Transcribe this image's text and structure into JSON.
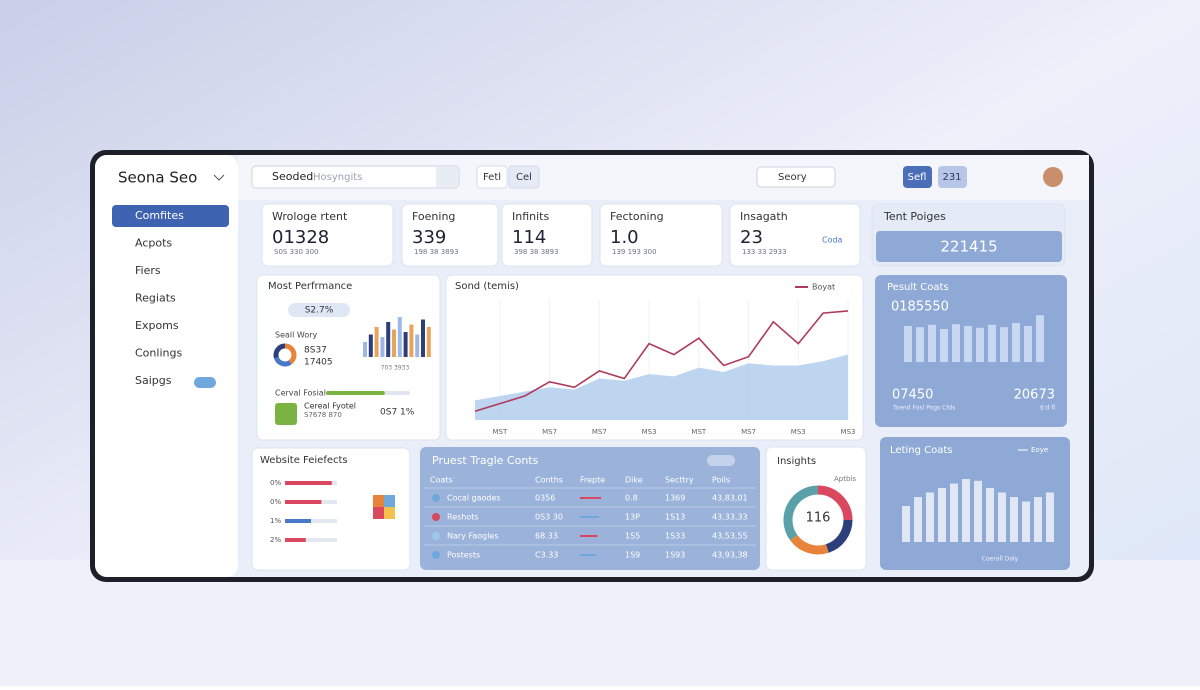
{
  "brand": "Seona Seo",
  "search": {
    "label": "Seoded",
    "placeholder": "Hosyngits"
  },
  "toolbar": [
    "Fetl",
    "Cel"
  ],
  "search2": "Seory",
  "buttons": [
    "Sefl",
    "231"
  ],
  "nav": [
    "Comfites",
    "Acpots",
    "Fiers",
    "Regiats",
    "Expoms",
    "Conlings",
    "Saipgs"
  ],
  "kpis": [
    {
      "title": "Wrologe rtent",
      "value": "01328",
      "sub": "S0S 330 300"
    },
    {
      "title": "Foening",
      "value": "339",
      "sub": "198 38 3893"
    },
    {
      "title": "Infinits",
      "value": "114",
      "sub": "398 38 3893"
    },
    {
      "title": "Fectoning",
      "value": "1.0",
      "sub": "139 193 300"
    },
    {
      "title": "Insagath",
      "value": "23",
      "sub": "133 33 2933",
      "note": "Coda"
    }
  ],
  "top_pages": {
    "title": "Tent Poiges",
    "value": "221415"
  },
  "performance": {
    "title": "Most Perfrmance",
    "pill": "S2.7%",
    "donut_title": "Seall Wory",
    "donut_values": [
      40,
      30,
      30
    ],
    "donut_colors": [
      "#e8833a",
      "#4a78c8",
      "#2d3f7a"
    ],
    "stats": [
      "8S37",
      "17405"
    ],
    "bars": [
      30,
      45,
      60,
      40,
      70,
      55,
      80,
      50,
      65,
      45,
      75,
      60
    ],
    "bar_colors": [
      "#9db8e8",
      "#2d3f7a",
      "#e8a45a"
    ],
    "caption": "703 3933",
    "progress_label": "Cerval Fosial",
    "progress": 70,
    "item_title": "Cereal Fyotel",
    "item_sub": "S7678 870",
    "item_value": "0S7 1%"
  },
  "trend": {
    "type": "line",
    "title": "Sond (temis)",
    "x": [
      0,
      1,
      2,
      3,
      4,
      5,
      6,
      7,
      8,
      9,
      10,
      11,
      12,
      13,
      14,
      15
    ],
    "xlim": [
      0,
      15
    ],
    "xticks": [
      {
        "value": 1,
        "label": "MST"
      },
      {
        "value": 3,
        "label": "MS7"
      },
      {
        "value": 5,
        "label": "MS7"
      },
      {
        "value": 7,
        "label": "MS3"
      },
      {
        "value": 9,
        "label": "MST"
      },
      {
        "value": 11,
        "label": "MS7"
      },
      {
        "value": 13,
        "label": "MS3"
      },
      {
        "value": 15,
        "label": "MS3"
      }
    ],
    "ylim": [
      0,
      110
    ],
    "series": [
      {
        "name": "Boyat",
        "color": "#b03a5b",
        "values": [
          8,
          15,
          22,
          35,
          30,
          45,
          38,
          70,
          60,
          75,
          50,
          58,
          90,
          70,
          98,
          100
        ]
      }
    ],
    "area": {
      "color": "#aecbec",
      "values": [
        18,
        22,
        26,
        30,
        28,
        38,
        36,
        42,
        40,
        48,
        44,
        52,
        50,
        50,
        54,
        60
      ]
    }
  },
  "results": {
    "title": "Pesult Coats",
    "value": "0185550",
    "bars": [
      60,
      58,
      62,
      55,
      63,
      60,
      57,
      62,
      58,
      65,
      60,
      78
    ],
    "left": "07450",
    "right": "20673",
    "caption": "Toend Fosl Pogs Cfds",
    "right_sub": "$'d fl"
  },
  "referrals": {
    "title": "Website Feiefects",
    "categories": [
      "0%",
      "0%",
      "1%",
      "2%"
    ],
    "values": [
      90,
      70,
      50,
      40
    ],
    "colors": [
      "#d9485f",
      "#d9485f",
      "#4a78c8",
      "#d9485f"
    ]
  },
  "table": {
    "title": "Pruest Tragle Conts",
    "columns": [
      "Coats",
      "Conths",
      "Frepte",
      "Dike",
      "Secttry",
      "Poils"
    ],
    "dot_colors": [
      "#6fa8dc",
      "#d9485f",
      "#9fc5e8",
      "#6fa8dc"
    ],
    "rows": [
      [
        "Cocal gaodes",
        "0356",
        "0.8",
        "1369",
        "43,83,01"
      ],
      [
        "Reshots",
        "0S3 30",
        "13P",
        "1S13",
        "43,33,33"
      ],
      [
        "Nary Faogles",
        "68.33",
        "1S5",
        "1S33",
        "43,53,55"
      ],
      [
        "Postests",
        "C3.33",
        "1S9",
        "1S93",
        "43,93,38"
      ]
    ],
    "progress": [
      60,
      55,
      50,
      45
    ]
  },
  "insights": {
    "title": "Insights",
    "label": "Aptbis",
    "center": "116",
    "values": [
      25,
      20,
      20,
      35
    ],
    "colors": [
      "#d9485f",
      "#2d3f7a",
      "#e8833a",
      "#5aa0a8"
    ]
  },
  "leting": {
    "title": "Leting Coats",
    "legend": "Eoye",
    "bars": [
      40,
      50,
      55,
      60,
      65,
      70,
      68,
      60,
      55,
      50,
      45,
      50,
      55
    ],
    "caption": "Coerall Daly"
  }
}
